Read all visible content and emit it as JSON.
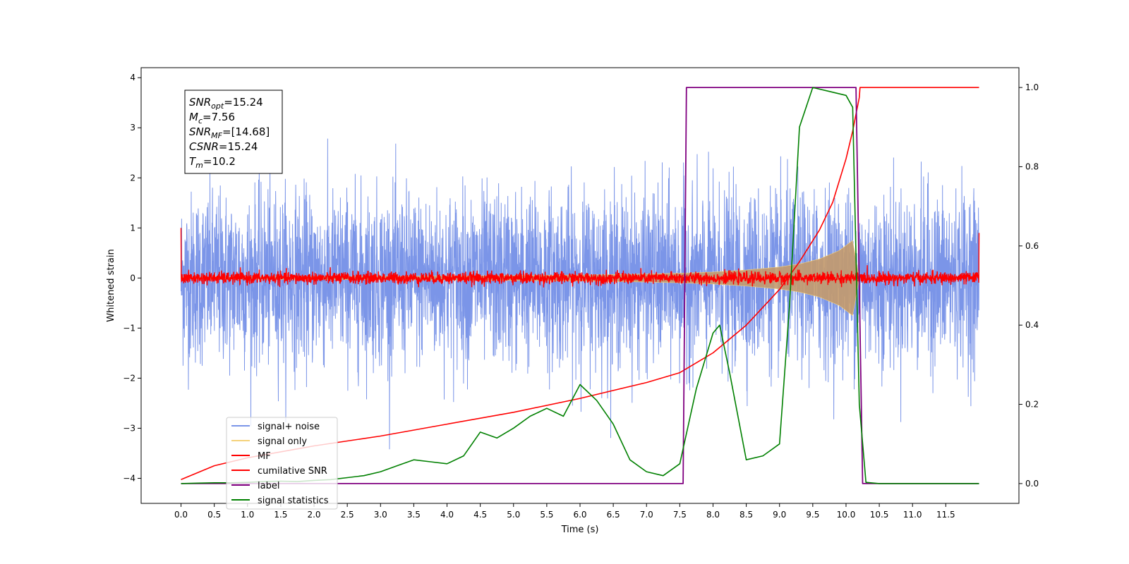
{
  "chart_data": {
    "type": "line",
    "title": "",
    "xlabel": "Time (s)",
    "ylabel": "Whitened strain",
    "xlim": [
      -0.6,
      12.6
    ],
    "ylim": [
      -4.5,
      4.2
    ],
    "y2lim": [
      -0.05,
      1.05
    ],
    "grid": false,
    "legend_position": "lower-left",
    "xticks": [
      0.0,
      0.5,
      1.0,
      1.5,
      2.0,
      2.5,
      3.0,
      3.5,
      4.0,
      4.5,
      5.0,
      5.5,
      6.0,
      6.5,
      7.0,
      7.5,
      8.0,
      8.5,
      9.0,
      9.5,
      10.0,
      10.5,
      11.0,
      11.5
    ],
    "xtick_labels": [
      "0.0",
      "0.5",
      "1.0",
      "1.5",
      "2.0",
      "2.5",
      "3.0",
      "3.5",
      "4.0",
      "4.5",
      "5.0",
      "5.5",
      "6.0",
      "6.5",
      "7.0",
      "7.5",
      "8.0",
      "8.5",
      "9.0",
      "9.5",
      "10.0",
      "10.5",
      "11.0",
      "11.5"
    ],
    "yticks": [
      -4,
      -3,
      -2,
      -1,
      0,
      1,
      2,
      3,
      4
    ],
    "ytick_labels": [
      "−4",
      "−3",
      "−2",
      "−1",
      "0",
      "1",
      "2",
      "3",
      "4"
    ],
    "y2ticks": [
      0.0,
      0.2,
      0.4,
      0.6,
      0.8,
      1.0
    ],
    "y2tick_labels": [
      "0.0",
      "0.2",
      "0.4",
      "0.6",
      "0.8",
      "1.0"
    ],
    "annotation": {
      "lines": [
        {
          "main": "SNR",
          "sub": "opt",
          "value": "=15.24"
        },
        {
          "main": "M",
          "sub": "c",
          "value": "=7.56"
        },
        {
          "main": "SNR",
          "sub": "MF",
          "value": "=[14.68]"
        },
        {
          "main": "CSNR",
          "sub": "",
          "value": "=15.24"
        },
        {
          "main": "T",
          "sub": "m",
          "value": "=10.2"
        }
      ]
    },
    "series": [
      {
        "name": "signal+ noise",
        "color": "#7b95e8",
        "axis": "left",
        "kind": "noise",
        "x_range": [
          0.0,
          12.0
        ],
        "amplitude_rms": 0.85,
        "peak_max": 3.8,
        "peak_min": -4.15
      },
      {
        "name": "signal only",
        "color": "#f5d27a",
        "axis": "left",
        "kind": "chirp_envelope",
        "fill_color": "#c49a6c",
        "x_range": [
          0.0,
          10.2
        ],
        "x": [
          0.0,
          2.0,
          4.0,
          6.0,
          7.0,
          7.6,
          8.0,
          8.5,
          9.0,
          9.3,
          9.6,
          9.9,
          10.1,
          10.2
        ],
        "envelope": [
          0.02,
          0.03,
          0.04,
          0.06,
          0.08,
          0.1,
          0.12,
          0.16,
          0.22,
          0.28,
          0.38,
          0.55,
          0.75,
          0.0
        ]
      },
      {
        "name": "MF",
        "color": "#ff0000",
        "axis": "left",
        "kind": "noise",
        "x_range": [
          0.0,
          12.0
        ],
        "amplitude_rms": 0.06,
        "edge_value": 1.0
      },
      {
        "name": "cumilative SNR",
        "color": "#ff0000",
        "axis": "right",
        "x": [
          0.0,
          0.5,
          1.0,
          2.0,
          3.0,
          4.0,
          5.0,
          6.0,
          7.0,
          7.5,
          8.0,
          8.5,
          9.0,
          9.3,
          9.6,
          9.8,
          10.0,
          10.1,
          10.2,
          10.21,
          12.0
        ],
        "values": [
          0.01,
          0.045,
          0.065,
          0.095,
          0.12,
          0.15,
          0.18,
          0.215,
          0.255,
          0.28,
          0.33,
          0.4,
          0.49,
          0.56,
          0.64,
          0.71,
          0.82,
          0.89,
          0.975,
          1.0,
          1.0
        ]
      },
      {
        "name": "label",
        "color": "#800080",
        "axis": "right",
        "x": [
          0.0,
          7.55,
          7.6,
          10.15,
          10.25,
          12.0
        ],
        "values": [
          0.0,
          0.0,
          1.0,
          1.0,
          0.0,
          0.0
        ]
      },
      {
        "name": "signal statistics",
        "color": "#008000",
        "axis": "right",
        "x": [
          0.0,
          0.25,
          0.5,
          0.75,
          1.0,
          1.25,
          1.5,
          1.75,
          2.0,
          2.25,
          2.5,
          2.75,
          3.0,
          3.25,
          3.5,
          3.75,
          4.0,
          4.25,
          4.5,
          4.75,
          5.0,
          5.25,
          5.5,
          5.75,
          6.0,
          6.25,
          6.5,
          6.75,
          7.0,
          7.25,
          7.5,
          7.75,
          8.0,
          8.1,
          8.25,
          8.5,
          8.75,
          9.0,
          9.15,
          9.3,
          9.5,
          9.75,
          10.0,
          10.1,
          10.2,
          10.3,
          10.5,
          12.0
        ],
        "values": [
          0.0,
          0.001,
          0.002,
          0.002,
          0.003,
          0.005,
          0.006,
          0.005,
          0.008,
          0.01,
          0.015,
          0.02,
          0.03,
          0.045,
          0.06,
          0.055,
          0.05,
          0.07,
          0.13,
          0.115,
          0.14,
          0.17,
          0.19,
          0.17,
          0.25,
          0.21,
          0.15,
          0.06,
          0.03,
          0.02,
          0.05,
          0.24,
          0.38,
          0.4,
          0.28,
          0.06,
          0.07,
          0.1,
          0.45,
          0.9,
          1.0,
          0.99,
          0.98,
          0.95,
          0.2,
          0.003,
          0.0,
          0.0
        ]
      }
    ]
  }
}
